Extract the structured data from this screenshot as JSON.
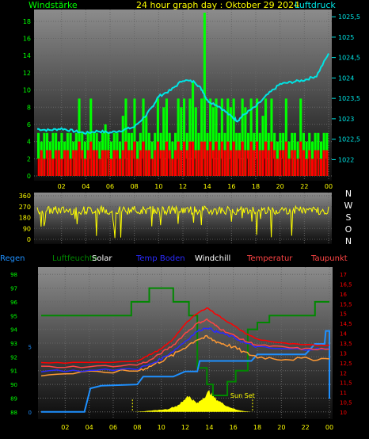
{
  "colors": {
    "green": "#00ff00",
    "red": "#ff0000",
    "cyan": "#00e5e5",
    "yellow": "#ffff00",
    "blue": "#2a2aff",
    "dodger": "#1e90ff",
    "darkgreen": "#008800",
    "orange": "#ff9933",
    "white": "#ffffff",
    "tomato": "#ff4444"
  },
  "header": {
    "left_title": "Windstärke",
    "center_title": "24 hour graph day : Oktober 29 2024",
    "right_title": "Luftdruck"
  },
  "chart_data": [
    {
      "type": "bar",
      "title": "24 hour graph day : Oktober 29 2024",
      "left_axis_label": "Windstärke",
      "right_axis_label": "Luftdruck",
      "x_ticks": [
        "02",
        "04",
        "06",
        "08",
        "10",
        "12",
        "14",
        "16",
        "18",
        "20",
        "22",
        "00"
      ],
      "y_left_ticks": [
        "18",
        "16",
        "14",
        "12",
        "10",
        "8",
        "6",
        "4",
        "2",
        "0"
      ],
      "y_left_range": [
        0,
        19
      ],
      "y_right_ticks": [
        "1025,5",
        "1025",
        "1024,5",
        "1024",
        "1023,5",
        "1023",
        "1022,5",
        "1022"
      ],
      "y_right_range": [
        1021.6,
        1025.6
      ],
      "wind_gust_samples": [
        5,
        4,
        5,
        5,
        4,
        5,
        5,
        4,
        5,
        4,
        5,
        5,
        4,
        5,
        9,
        5,
        4,
        5,
        9,
        5,
        5,
        4,
        5,
        6,
        5,
        4,
        5,
        5,
        4,
        7,
        9,
        5,
        5,
        9,
        4,
        5,
        9,
        7,
        5,
        4,
        5,
        9,
        5,
        8,
        9,
        5,
        4,
        5,
        9,
        8,
        9,
        5,
        9,
        11,
        8,
        5,
        9,
        19,
        5,
        9,
        8,
        9,
        5,
        9,
        5,
        9,
        8,
        9,
        5,
        5,
        9,
        8,
        5,
        9,
        5,
        9,
        5,
        7,
        9,
        5,
        9,
        5,
        4,
        5,
        5,
        9,
        4,
        5,
        5,
        4,
        9,
        5,
        4,
        5,
        4,
        5,
        5,
        4,
        5,
        5
      ],
      "wind_avg_samples": [
        2,
        3,
        2,
        3,
        3,
        2,
        3,
        3,
        2,
        3,
        3,
        2,
        3,
        3,
        4,
        3,
        2,
        3,
        4,
        3,
        3,
        2,
        3,
        3,
        3,
        2,
        3,
        3,
        2,
        3,
        4,
        3,
        3,
        4,
        2,
        3,
        4,
        3,
        3,
        2,
        3,
        4,
        3,
        3,
        4,
        3,
        2,
        3,
        4,
        3,
        4,
        3,
        4,
        4,
        3,
        3,
        4,
        4,
        3,
        4,
        3,
        4,
        3,
        4,
        3,
        4,
        3,
        4,
        3,
        3,
        4,
        3,
        3,
        4,
        3,
        4,
        3,
        3,
        4,
        3,
        4,
        3,
        2,
        3,
        3,
        4,
        2,
        3,
        3,
        2,
        4,
        3,
        2,
        3,
        2,
        3,
        3,
        2,
        3,
        3
      ],
      "pressure_series": [
        [
          0,
          1022.75
        ],
        [
          1,
          1022.72
        ],
        [
          2,
          1022.76
        ],
        [
          3,
          1022.7
        ],
        [
          4,
          1022.65
        ],
        [
          5,
          1022.7
        ],
        [
          6,
          1022.66
        ],
        [
          7,
          1022.72
        ],
        [
          8,
          1022.8
        ],
        [
          9,
          1023.1
        ],
        [
          9.5,
          1023.3
        ],
        [
          10,
          1023.55
        ],
        [
          11,
          1023.7
        ],
        [
          12,
          1023.95
        ],
        [
          13,
          1023.9
        ],
        [
          13.6,
          1023.7
        ],
        [
          14,
          1023.45
        ],
        [
          15,
          1023.3
        ],
        [
          16,
          1023.05
        ],
        [
          16.5,
          1022.95
        ],
        [
          17,
          1023.1
        ],
        [
          18,
          1023.3
        ],
        [
          19,
          1023.6
        ],
        [
          20,
          1023.85
        ],
        [
          21,
          1023.9
        ],
        [
          22,
          1023.95
        ],
        [
          23,
          1024.05
        ],
        [
          24,
          1024.6
        ]
      ]
    },
    {
      "type": "scatter",
      "y_ticks": [
        "360",
        "270",
        "180",
        "90",
        "0"
      ],
      "y_range": [
        0,
        360
      ],
      "compass_labels": [
        "N",
        "W",
        "S",
        "O",
        "N"
      ],
      "wind_direction_mean": 240
    },
    {
      "type": "line",
      "legend": [
        "Regen",
        "Luftfeuchte",
        "Solar",
        "Temp Boden",
        "Windchill",
        "Temperatur",
        "Taupunkt"
      ],
      "x_ticks": [
        "02",
        "04",
        "06",
        "08",
        "10",
        "12",
        "14",
        "16",
        "18",
        "20",
        "22",
        "00"
      ],
      "y_left_ticks": [
        "98",
        "97",
        "96",
        "95",
        "94",
        "93",
        "92",
        "91",
        "90",
        "89",
        "88"
      ],
      "y_left_range": [
        87.7,
        98.3
      ],
      "y_right_ticks": [
        "17",
        "16,5",
        "16",
        "15,5",
        "15",
        "14,5",
        "14",
        "13,5",
        "13",
        "12,5",
        "12",
        "11,5",
        "11",
        "10,5",
        "10"
      ],
      "y_right_range": [
        9.8,
        17.2
      ],
      "rain_ticks": [
        "5",
        "0"
      ],
      "annotation": "Sun Set",
      "humidity_steps": [
        [
          0,
          95.0
        ],
        [
          7.5,
          95.0
        ],
        [
          7.5,
          96.0
        ],
        [
          9,
          96.0
        ],
        [
          9,
          97.0
        ],
        [
          11,
          97.0
        ],
        [
          11,
          96.0
        ],
        [
          12.3,
          96.0
        ],
        [
          12.3,
          95.0
        ],
        [
          13,
          95.0
        ],
        [
          13,
          91.2
        ],
        [
          13.8,
          91.2
        ],
        [
          13.8,
          90.0
        ],
        [
          14.3,
          90.0
        ],
        [
          14.3,
          89.2
        ],
        [
          15.5,
          89.2
        ],
        [
          15.5,
          90.2
        ],
        [
          16.2,
          90.2
        ],
        [
          16.2,
          91.0
        ],
        [
          17.2,
          91.0
        ],
        [
          17.2,
          94.0
        ],
        [
          18.0,
          94.0
        ],
        [
          18.0,
          94.5
        ],
        [
          19,
          94.5
        ],
        [
          19,
          95.0
        ],
        [
          22.8,
          95.0
        ],
        [
          22.8,
          96.0
        ],
        [
          24,
          96.0
        ]
      ],
      "temperature_series": [
        [
          0,
          12.5
        ],
        [
          4,
          12.5
        ],
        [
          8,
          12.6
        ],
        [
          9,
          12.9
        ],
        [
          10,
          13.2
        ],
        [
          11,
          13.7
        ],
        [
          12,
          14.5
        ],
        [
          13,
          15.0
        ],
        [
          13.8,
          15.3
        ],
        [
          14.5,
          15.0
        ],
        [
          15,
          14.8
        ],
        [
          16,
          14.4
        ],
        [
          17,
          14.0
        ],
        [
          18,
          13.7
        ],
        [
          20,
          13.5
        ],
        [
          22,
          13.4
        ],
        [
          24,
          13.4
        ]
      ],
      "windchill_series": [
        [
          0,
          12.3
        ],
        [
          4,
          12.3
        ],
        [
          8,
          12.4
        ],
        [
          9,
          12.6
        ],
        [
          10,
          13.0
        ],
        [
          11,
          13.4
        ],
        [
          12,
          14.0
        ],
        [
          13,
          14.5
        ],
        [
          13.8,
          14.7
        ],
        [
          14.5,
          14.4
        ],
        [
          15,
          14.2
        ],
        [
          16,
          13.9
        ],
        [
          17,
          13.6
        ],
        [
          18,
          13.4
        ],
        [
          20,
          13.3
        ],
        [
          22,
          13.2
        ],
        [
          24,
          13.2
        ]
      ],
      "dewpoint_series": [
        [
          0,
          11.9
        ],
        [
          4,
          12.0
        ],
        [
          8,
          12.1
        ],
        [
          9,
          12.3
        ],
        [
          10,
          12.6
        ],
        [
          11,
          12.9
        ],
        [
          12,
          13.3
        ],
        [
          13,
          13.7
        ],
        [
          13.8,
          13.8
        ],
        [
          14.5,
          13.6
        ],
        [
          15,
          13.5
        ],
        [
          16,
          13.3
        ],
        [
          17,
          13.0
        ],
        [
          18,
          12.8
        ],
        [
          20,
          12.7
        ],
        [
          22,
          12.7
        ],
        [
          24,
          12.7
        ]
      ],
      "soil_temp_series": [
        [
          0,
          12.1
        ],
        [
          4,
          12.1
        ],
        [
          8,
          12.2
        ],
        [
          9,
          12.4
        ],
        [
          10,
          12.7
        ],
        [
          11,
          13.1
        ],
        [
          12,
          13.6
        ],
        [
          13,
          14.1
        ],
        [
          13.8,
          14.3
        ],
        [
          14.5,
          14.1
        ],
        [
          15,
          14.0
        ],
        [
          16,
          13.8
        ],
        [
          17,
          13.5
        ],
        [
          18,
          13.3
        ],
        [
          20,
          13.2
        ],
        [
          22,
          13.2
        ],
        [
          24,
          13.2
        ]
      ],
      "rain_series": [
        [
          0,
          0
        ],
        [
          3.6,
          0
        ],
        [
          4.1,
          1.8
        ],
        [
          5,
          2.0
        ],
        [
          8,
          2.1
        ],
        [
          8.5,
          2.7
        ],
        [
          11,
          2.7
        ],
        [
          12,
          3.1
        ],
        [
          13,
          3.1
        ],
        [
          13.2,
          3.9
        ],
        [
          16,
          3.9
        ],
        [
          17.5,
          3.9
        ],
        [
          18,
          4.4
        ],
        [
          22,
          4.4
        ],
        [
          22.8,
          5.2
        ],
        [
          23.6,
          5.2
        ],
        [
          23.7,
          6.2
        ],
        [
          24,
          6.2
        ],
        [
          24,
          1
        ]
      ],
      "solar_series": [
        [
          7.7,
          0
        ],
        [
          8.5,
          0.03
        ],
        [
          9.5,
          0.08
        ],
        [
          10.5,
          0.14
        ],
        [
          11.3,
          0.3
        ],
        [
          11.8,
          0.5
        ],
        [
          12.2,
          0.8
        ],
        [
          12.6,
          0.6
        ],
        [
          13,
          0.4
        ],
        [
          13.5,
          0.7
        ],
        [
          14,
          1.0
        ],
        [
          14.4,
          0.7
        ],
        [
          15,
          0.45
        ],
        [
          15.6,
          0.25
        ],
        [
          16.3,
          0.1
        ],
        [
          17,
          0.03
        ],
        [
          17.6,
          0
        ]
      ]
    }
  ]
}
